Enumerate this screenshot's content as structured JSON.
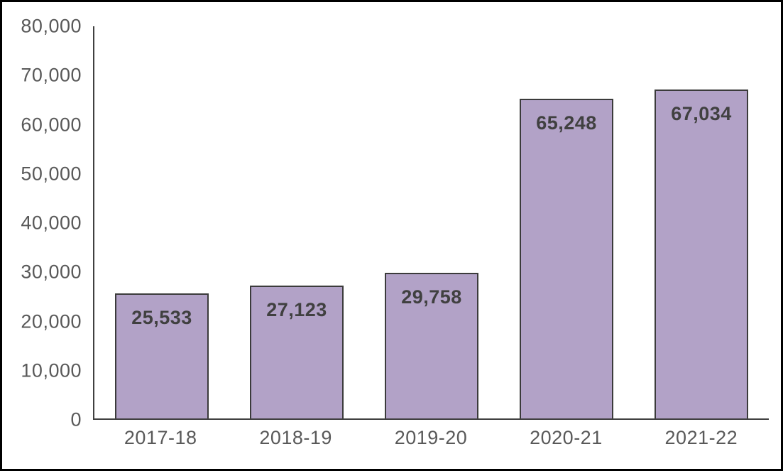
{
  "chart_data": {
    "type": "bar",
    "title": "",
    "xlabel": "",
    "ylabel": "",
    "categories": [
      "2017-18",
      "2018-19",
      "2019-20",
      "2020-21",
      "2021-22"
    ],
    "values": [
      25533,
      27123,
      29758,
      65248,
      67034
    ],
    "value_labels": [
      "25,533",
      "27,123",
      "29,758",
      "65,248",
      "67,034"
    ],
    "ylim": [
      0,
      80000
    ],
    "y_ticks": [
      {
        "label": "0",
        "value": 0
      },
      {
        "label": "10,000",
        "value": 10000
      },
      {
        "label": "20,000",
        "value": 20000
      },
      {
        "label": "30,000",
        "value": 30000
      },
      {
        "label": "40,000",
        "value": 40000
      },
      {
        "label": "50,000",
        "value": 50000
      },
      {
        "label": "60,000",
        "value": 60000
      },
      {
        "label": "70,000",
        "value": 70000
      },
      {
        "label": "80,000",
        "value": 80000
      }
    ],
    "grid": false,
    "legend_position": "none",
    "colors": {
      "bar_fill": "#b2a2c7",
      "bar_border": "#3b3b3b",
      "value_label": "#404040",
      "axis_line": "#404040",
      "tick_label": "#595959",
      "frame_border": "#000000",
      "background": "#ffffff"
    }
  }
}
